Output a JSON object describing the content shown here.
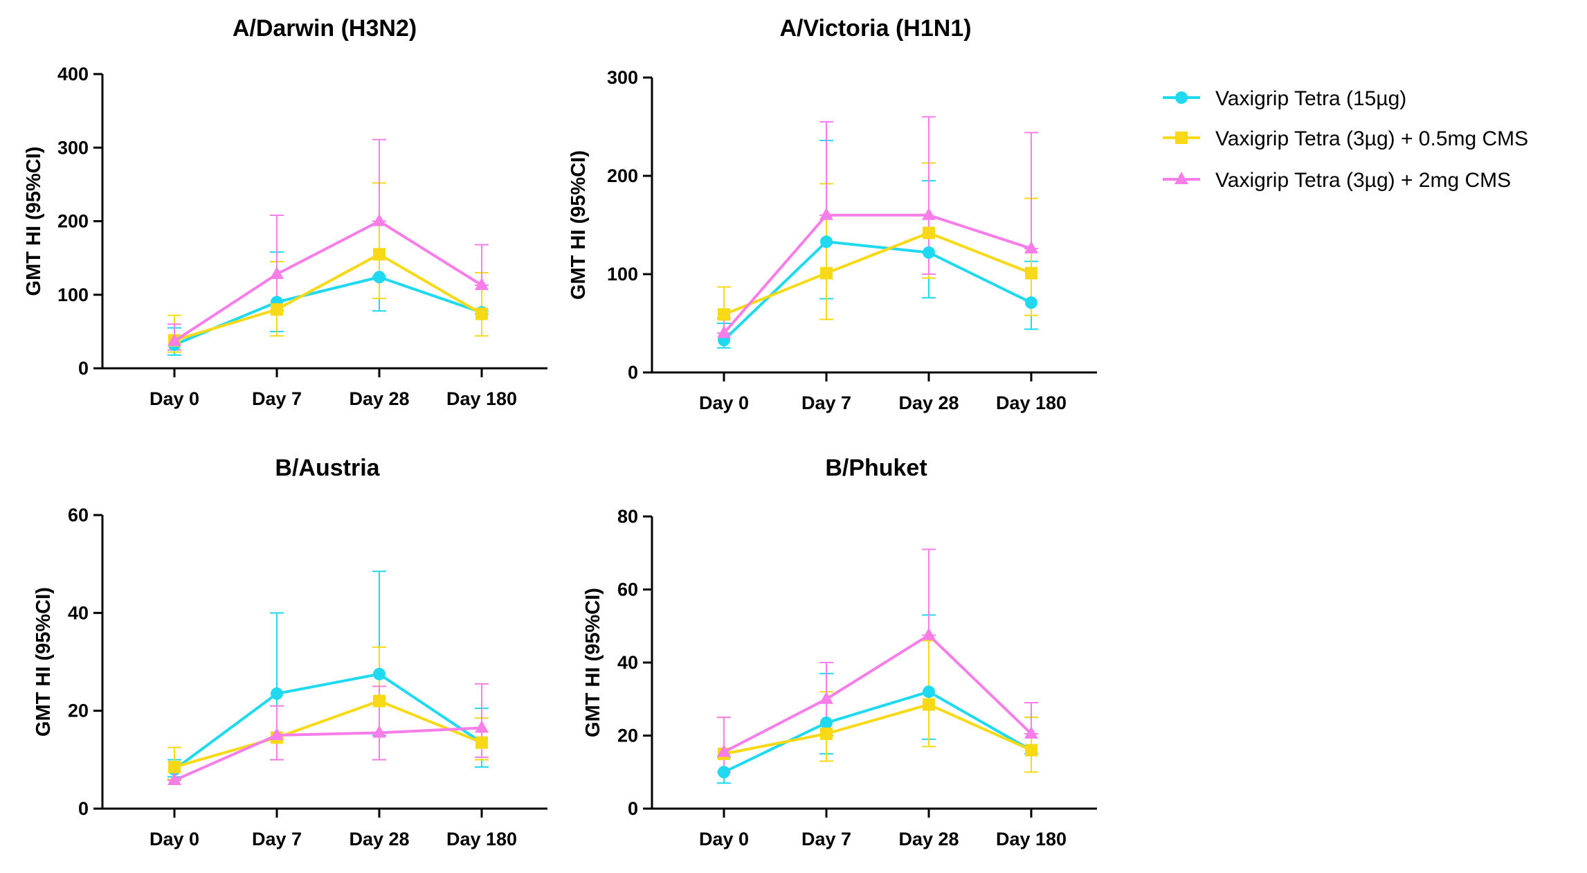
{
  "figure": {
    "legend": [
      {
        "label": "Vaxigrip Tetra (15µg)",
        "color": "#1ED9F0",
        "marker": "circle"
      },
      {
        "label": "Vaxigrip Tetra (3µg) + 0.5mg CMS",
        "color": "#F7D917",
        "marker": "square"
      },
      {
        "label": "Vaxigrip Tetra (3µg)  + 2mg CMS",
        "color": "#F77EE8",
        "marker": "triangle"
      }
    ]
  },
  "chart_data": [
    {
      "type": "line",
      "title": "A/Darwin (H3N2)",
      "ylabel": "GMT HI (95%CI)",
      "xlabel": "",
      "categories": [
        "Day 0",
        "Day 7",
        "Day 28",
        "Day 180"
      ],
      "ylim": [
        0,
        400
      ],
      "yticks": [
        0,
        100,
        200,
        300,
        400
      ],
      "series": [
        {
          "name": "Vaxigrip Tetra (15µg)",
          "values": [
            32,
            90,
            124,
            76
          ],
          "upper": [
            55,
            158,
            125,
            78
          ],
          "lower": [
            18,
            50,
            78,
            74
          ]
        },
        {
          "name": "Vaxigrip Tetra (3µg) + 0.5mg CMS",
          "values": [
            38,
            80,
            155,
            74
          ],
          "upper": [
            72,
            145,
            252,
            130
          ],
          "lower": [
            22,
            44,
            95,
            44
          ]
        },
        {
          "name": "Vaxigrip Tetra (3µg)  + 2mg CMS",
          "values": [
            37,
            128,
            200,
            113
          ],
          "upper": [
            60,
            208,
            311,
            168
          ],
          "lower": [
            25,
            78,
            200,
            113
          ]
        }
      ]
    },
    {
      "type": "line",
      "title": "A/Victoria (H1N1)",
      "ylabel": "GMT HI (95%CI)",
      "xlabel": "",
      "categories": [
        "Day 0",
        "Day 7",
        "Day 28",
        "Day 180"
      ],
      "ylim": [
        0,
        300
      ],
      "yticks": [
        0,
        100,
        200,
        300
      ],
      "series": [
        {
          "name": "Vaxigrip Tetra (15µg)",
          "values": [
            33,
            133,
            122,
            71
          ],
          "upper": [
            50,
            236,
            195,
            113
          ],
          "lower": [
            25,
            75,
            76,
            44
          ]
        },
        {
          "name": "Vaxigrip Tetra (3µg) + 0.5mg CMS",
          "values": [
            59,
            101,
            142,
            101
          ],
          "upper": [
            87,
            192,
            213,
            177
          ],
          "lower": [
            40,
            54,
            96,
            58
          ]
        },
        {
          "name": "Vaxigrip Tetra (3µg)  + 2mg CMS",
          "values": [
            40,
            160,
            160,
            126
          ],
          "upper": [
            55,
            255,
            260,
            244
          ],
          "lower": [
            40,
            160,
            100,
            126
          ]
        }
      ]
    },
    {
      "type": "line",
      "title": "B/Austria",
      "ylabel": "GMT HI (95%CI)",
      "xlabel": "",
      "categories": [
        "Day 0",
        "Day 7",
        "Day 28",
        "Day 180"
      ],
      "ylim": [
        0,
        60
      ],
      "yticks": [
        0,
        20,
        40,
        60
      ],
      "series": [
        {
          "name": "Vaxigrip Tetra (15µg)",
          "values": [
            8,
            23.5,
            27.5,
            13.5
          ],
          "upper": [
            10,
            40,
            48.5,
            20.5
          ],
          "lower": [
            6.5,
            10,
            15,
            8.5
          ]
        },
        {
          "name": "Vaxigrip Tetra (3µg) + 0.5mg CMS",
          "values": [
            8.5,
            14.5,
            22,
            13.5
          ],
          "upper": [
            12.5,
            21,
            33,
            18.5
          ],
          "lower": [
            6,
            10,
            15.5,
            10
          ]
        },
        {
          "name": "Vaxigrip Tetra (3µg)  + 2mg CMS",
          "values": [
            5.8,
            15,
            15.5,
            16.5
          ],
          "upper": [
            5.8,
            21,
            25,
            25.5
          ],
          "lower": [
            5.8,
            10,
            10,
            10.5
          ]
        }
      ]
    },
    {
      "type": "line",
      "title": "B/Phuket",
      "ylabel": "GMT HI (95%CI)",
      "xlabel": "",
      "categories": [
        "Day 0",
        "Day 7",
        "Day 28",
        "Day 180"
      ],
      "ylim": [
        0,
        80
      ],
      "yticks": [
        0,
        20,
        40,
        60,
        80
      ],
      "series": [
        {
          "name": "Vaxigrip Tetra (15µg)",
          "values": [
            10,
            23.5,
            32,
            16
          ],
          "upper": [
            14,
            37,
            53,
            25
          ],
          "lower": [
            7,
            15,
            19,
            15
          ]
        },
        {
          "name": "Vaxigrip Tetra (3µg) + 0.5mg CMS",
          "values": [
            15,
            20.5,
            28.5,
            16
          ],
          "upper": [
            25,
            32,
            46,
            25
          ],
          "lower": [
            10,
            13,
            17,
            10
          ]
        },
        {
          "name": "Vaxigrip Tetra (3µg)  + 2mg CMS",
          "values": [
            15.5,
            30,
            47.5,
            20.5
          ],
          "upper": [
            25,
            40,
            71,
            29
          ],
          "lower": [
            10,
            20,
            47.5,
            20.5
          ]
        }
      ]
    }
  ]
}
